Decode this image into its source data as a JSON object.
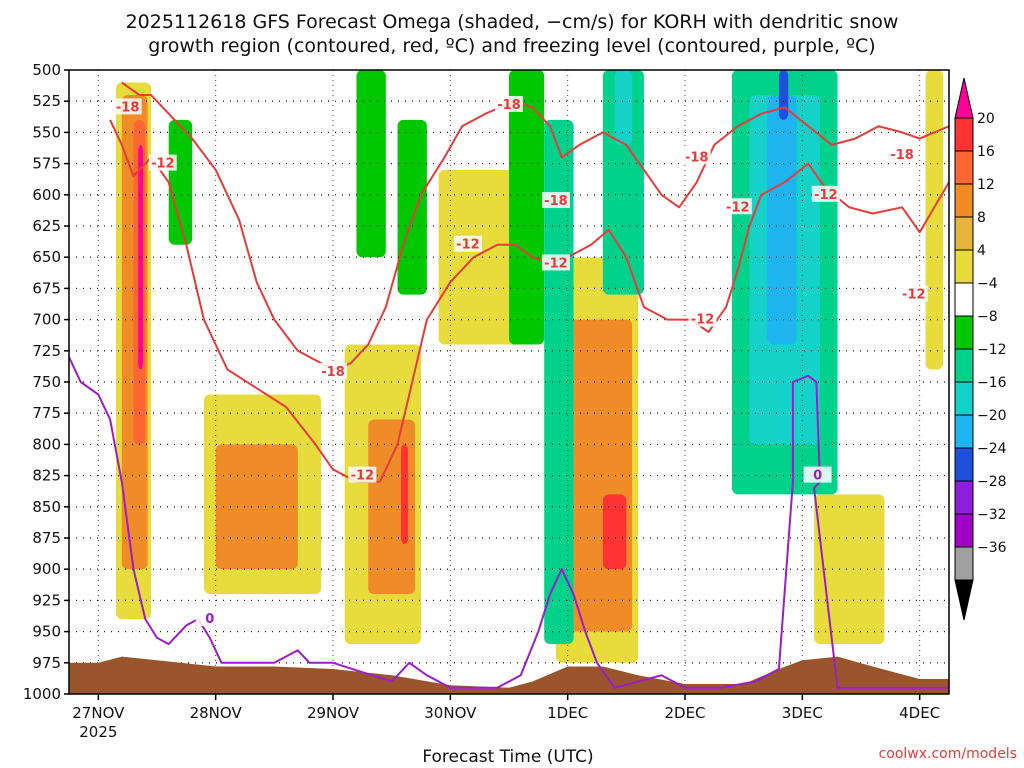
{
  "chart_data": {
    "type": "heatmap",
    "title_line1": "2025112618 GFS Forecast Omega (shaded, −cm/s) for KORH with dendritic snow",
    "title_line2": "growth region (contoured, red, ºC) and freezing level (contoured, purple, ºC)",
    "xlabel": "Forecast Time (UTC)",
    "x_ticks": [
      {
        "label": "27NOV",
        "sub": "2025",
        "day": 0
      },
      {
        "label": "28NOV",
        "sub": "",
        "day": 1
      },
      {
        "label": "29NOV",
        "sub": "",
        "day": 2
      },
      {
        "label": "30NOV",
        "sub": "",
        "day": 3
      },
      {
        "label": "1DEC",
        "sub": "",
        "day": 4
      },
      {
        "label": "2DEC",
        "sub": "",
        "day": 5
      },
      {
        "label": "3DEC",
        "sub": "",
        "day": 6
      },
      {
        "label": "4DEC",
        "sub": "",
        "day": 7
      }
    ],
    "xlim_days": [
      -0.25,
      7.25
    ],
    "y_ticks": [
      500,
      525,
      550,
      575,
      600,
      625,
      650,
      675,
      700,
      725,
      750,
      775,
      800,
      825,
      850,
      875,
      900,
      925,
      950,
      975,
      1000
    ],
    "ylim_hpa": [
      500,
      1000
    ],
    "colorbar": {
      "labels": [
        "20",
        "16",
        "12",
        "8",
        "4",
        "−4",
        "−8",
        "−12",
        "−16",
        "−20",
        "−24",
        "−28",
        "−32",
        "−36"
      ],
      "colors": [
        "#ff0099",
        "#ff3333",
        "#ff6633",
        "#f08c28",
        "#e8b440",
        "#e8dc3c",
        "#ffffff",
        "#00c800",
        "#00d28c",
        "#14d2c8",
        "#1eb4f0",
        "#1e50dc",
        "#8c1edc",
        "#a000c8",
        "#a0a0a0",
        "#000000"
      ]
    },
    "omega_cells": [
      {
        "t0": 0.15,
        "t1": 0.45,
        "p0": 510,
        "p1": 940,
        "v": 6
      },
      {
        "t0": 0.2,
        "t1": 0.42,
        "p0": 520,
        "p1": 900,
        "v": 10
      },
      {
        "t0": 0.3,
        "t1": 0.4,
        "p0": 540,
        "p1": 800,
        "v": 14
      },
      {
        "t0": 0.34,
        "t1": 0.38,
        "p0": 560,
        "p1": 740,
        "v": 20
      },
      {
        "t0": 0.9,
        "t1": 1.9,
        "p0": 760,
        "p1": 920,
        "v": 6
      },
      {
        "t0": 1.0,
        "t1": 1.7,
        "p0": 800,
        "p1": 900,
        "v": 10
      },
      {
        "t0": 2.1,
        "t1": 2.75,
        "p0": 720,
        "p1": 960,
        "v": 6
      },
      {
        "t0": 2.3,
        "t1": 2.7,
        "p0": 780,
        "p1": 920,
        "v": 10
      },
      {
        "t0": 2.58,
        "t1": 2.64,
        "p0": 800,
        "p1": 880,
        "v": 16
      },
      {
        "t0": 2.9,
        "t1": 3.6,
        "p0": 580,
        "p1": 720,
        "v": 5
      },
      {
        "t0": 3.9,
        "t1": 4.6,
        "p0": 650,
        "p1": 975,
        "v": 6
      },
      {
        "t0": 4.0,
        "t1": 4.55,
        "p0": 700,
        "p1": 950,
        "v": 10
      },
      {
        "t0": 4.3,
        "t1": 4.5,
        "p0": 840,
        "p1": 900,
        "v": 18
      },
      {
        "t0": 6.1,
        "t1": 6.7,
        "p0": 840,
        "p1": 960,
        "v": 5
      },
      {
        "t0": 7.05,
        "t1": 7.2,
        "p0": 500,
        "p1": 740,
        "v": 5
      },
      {
        "t0": 3.5,
        "t1": 3.8,
        "p0": 500,
        "p1": 720,
        "v": -6
      },
      {
        "t0": 3.8,
        "t1": 4.05,
        "p0": 540,
        "p1": 960,
        "v": -8
      },
      {
        "t0": 4.3,
        "t1": 4.65,
        "p0": 500,
        "p1": 680,
        "v": -10
      },
      {
        "t0": 4.4,
        "t1": 4.55,
        "p0": 500,
        "p1": 560,
        "v": -14
      },
      {
        "t0": 2.2,
        "t1": 2.45,
        "p0": 500,
        "p1": 650,
        "v": -6
      },
      {
        "t0": 2.55,
        "t1": 2.8,
        "p0": 540,
        "p1": 680,
        "v": -6
      },
      {
        "t0": 0.6,
        "t1": 0.8,
        "p0": 540,
        "p1": 640,
        "v": -6
      },
      {
        "t0": 5.4,
        "t1": 6.3,
        "p0": 500,
        "p1": 840,
        "v": -8
      },
      {
        "t0": 5.55,
        "t1": 6.15,
        "p0": 520,
        "p1": 800,
        "v": -12
      },
      {
        "t0": 5.7,
        "t1": 5.95,
        "p0": 520,
        "p1": 720,
        "v": -16
      },
      {
        "t0": 5.8,
        "t1": 5.88,
        "p0": 500,
        "p1": 540,
        "v": -22
      }
    ],
    "series": [
      {
        "name": "dgz_-12",
        "color": "#e63c3c",
        "points": [
          [
            0.1,
            540
          ],
          [
            0.2,
            560
          ],
          [
            0.3,
            585
          ],
          [
            0.45,
            570
          ],
          [
            0.6,
            590
          ],
          [
            0.75,
            640
          ],
          [
            0.9,
            700
          ],
          [
            1.1,
            740
          ],
          [
            1.35,
            755
          ],
          [
            1.6,
            770
          ],
          [
            1.85,
            800
          ],
          [
            2.0,
            820
          ],
          [
            2.2,
            830
          ],
          [
            2.4,
            830
          ],
          [
            2.55,
            800
          ],
          [
            2.65,
            760
          ],
          [
            2.8,
            700
          ],
          [
            3.0,
            670
          ],
          [
            3.2,
            650
          ],
          [
            3.4,
            640
          ],
          [
            3.55,
            640
          ],
          [
            3.7,
            650
          ],
          [
            3.85,
            655
          ],
          [
            4.0,
            650
          ],
          [
            4.2,
            640
          ],
          [
            4.35,
            628
          ],
          [
            4.5,
            650
          ],
          [
            4.65,
            690
          ],
          [
            4.85,
            700
          ],
          [
            5.05,
            700
          ],
          [
            5.2,
            710
          ],
          [
            5.35,
            690
          ],
          [
            5.45,
            660
          ],
          [
            5.55,
            625
          ],
          [
            5.65,
            600
          ],
          [
            5.85,
            590
          ],
          [
            6.05,
            575
          ],
          [
            6.2,
            595
          ],
          [
            6.4,
            610
          ],
          [
            6.6,
            615
          ],
          [
            6.85,
            610
          ],
          [
            7.0,
            630
          ],
          [
            7.25,
            590
          ]
        ]
      },
      {
        "name": "dgz_-18",
        "color": "#e63c3c",
        "points": [
          [
            0.2,
            510
          ],
          [
            0.35,
            520
          ],
          [
            0.45,
            520
          ],
          [
            0.6,
            535
          ],
          [
            0.8,
            555
          ],
          [
            1.0,
            580
          ],
          [
            1.2,
            620
          ],
          [
            1.35,
            670
          ],
          [
            1.5,
            700
          ],
          [
            1.7,
            725
          ],
          [
            2.0,
            740
          ],
          [
            2.15,
            735
          ],
          [
            2.3,
            720
          ],
          [
            2.45,
            690
          ],
          [
            2.6,
            640
          ],
          [
            2.75,
            600
          ],
          [
            2.95,
            570
          ],
          [
            3.1,
            545
          ],
          [
            3.3,
            535
          ],
          [
            3.55,
            525
          ],
          [
            3.7,
            530
          ],
          [
            3.85,
            545
          ],
          [
            3.95,
            570
          ],
          [
            4.1,
            560
          ],
          [
            4.3,
            550
          ],
          [
            4.5,
            560
          ],
          [
            4.65,
            580
          ],
          [
            4.8,
            600
          ],
          [
            4.95,
            610
          ],
          [
            5.1,
            590
          ],
          [
            5.25,
            560
          ],
          [
            5.45,
            545
          ],
          [
            5.65,
            535
          ],
          [
            5.85,
            530
          ],
          [
            6.05,
            545
          ],
          [
            6.25,
            560
          ],
          [
            6.45,
            555
          ],
          [
            6.65,
            545
          ],
          [
            6.85,
            550
          ],
          [
            7.0,
            555
          ],
          [
            7.25,
            545
          ]
        ]
      },
      {
        "name": "freezing_0",
        "color": "#9b1ec8",
        "points": [
          [
            -0.25,
            730
          ],
          [
            -0.15,
            750
          ],
          [
            0.0,
            760
          ],
          [
            0.1,
            780
          ],
          [
            0.2,
            830
          ],
          [
            0.3,
            900
          ],
          [
            0.4,
            940
          ],
          [
            0.5,
            955
          ],
          [
            0.6,
            960
          ],
          [
            0.75,
            945
          ],
          [
            0.85,
            940
          ],
          [
            0.95,
            955
          ],
          [
            1.05,
            975
          ],
          [
            1.5,
            975
          ],
          [
            1.7,
            965
          ],
          [
            1.8,
            975
          ],
          [
            2.0,
            975
          ],
          [
            2.5,
            990
          ],
          [
            2.65,
            975
          ],
          [
            2.8,
            985
          ],
          [
            3.0,
            995
          ],
          [
            3.4,
            995
          ],
          [
            3.6,
            985
          ],
          [
            3.75,
            950
          ],
          [
            3.85,
            920
          ],
          [
            3.95,
            900
          ],
          [
            4.05,
            920
          ],
          [
            4.15,
            950
          ],
          [
            4.25,
            975
          ],
          [
            4.4,
            995
          ],
          [
            4.6,
            990
          ],
          [
            4.8,
            985
          ],
          [
            5.0,
            995
          ],
          [
            5.3,
            995
          ],
          [
            5.6,
            990
          ],
          [
            5.8,
            980
          ],
          [
            5.92,
            830
          ],
          [
            5.92,
            750
          ],
          [
            6.05,
            745
          ],
          [
            6.12,
            750
          ],
          [
            6.15,
            830
          ],
          [
            6.1,
            835
          ],
          [
            6.3,
            995
          ],
          [
            6.8,
            995
          ],
          [
            7.25,
            995
          ]
        ]
      }
    ],
    "contour_labels": [
      {
        "text": "-18",
        "t": 0.25,
        "p": 530,
        "color": "#e63c3c"
      },
      {
        "text": "-12",
        "t": 0.55,
        "p": 575,
        "color": "#e63c3c"
      },
      {
        "text": "-18",
        "t": 2.0,
        "p": 742,
        "color": "#e63c3c"
      },
      {
        "text": "-12",
        "t": 2.25,
        "p": 825,
        "color": "#e63c3c"
      },
      {
        "text": "-12",
        "t": 3.15,
        "p": 640,
        "color": "#e63c3c"
      },
      {
        "text": "-18",
        "t": 3.5,
        "p": 528,
        "color": "#e63c3c"
      },
      {
        "text": "-12",
        "t": 3.9,
        "p": 655,
        "color": "#e63c3c"
      },
      {
        "text": "-18",
        "t": 3.9,
        "p": 605,
        "color": "#e63c3c"
      },
      {
        "text": "-18",
        "t": 5.1,
        "p": 570,
        "color": "#e63c3c"
      },
      {
        "text": "-12",
        "t": 5.15,
        "p": 700,
        "color": "#e63c3c"
      },
      {
        "text": "-12",
        "t": 5.45,
        "p": 610,
        "color": "#e63c3c"
      },
      {
        "text": "-12",
        "t": 6.2,
        "p": 600,
        "color": "#e63c3c"
      },
      {
        "text": "-18",
        "t": 6.85,
        "p": 568,
        "color": "#e63c3c"
      },
      {
        "text": "-12",
        "t": 6.95,
        "p": 680,
        "color": "#e63c3c"
      },
      {
        "text": "0",
        "t": 0.95,
        "p": 940,
        "color": "#9b1ec8"
      },
      {
        "text": "0",
        "t": 6.13,
        "p": 825,
        "color": "#9b1ec8"
      }
    ],
    "terrain_color": "#9b552d",
    "terrain_top": [
      [
        -0.25,
        975
      ],
      [
        0.0,
        975
      ],
      [
        0.2,
        970
      ],
      [
        0.5,
        973
      ],
      [
        1.0,
        978
      ],
      [
        1.5,
        978
      ],
      [
        2.0,
        980
      ],
      [
        2.5,
        985
      ],
      [
        3.0,
        993
      ],
      [
        3.5,
        995
      ],
      [
        3.7,
        990
      ],
      [
        4.0,
        978
      ],
      [
        4.3,
        978
      ],
      [
        4.6,
        985
      ],
      [
        5.0,
        992
      ],
      [
        5.5,
        992
      ],
      [
        5.8,
        980
      ],
      [
        6.0,
        973
      ],
      [
        6.3,
        970
      ],
      [
        6.6,
        978
      ],
      [
        7.0,
        988
      ],
      [
        7.25,
        988
      ]
    ]
  },
  "credit": "coolwx.com/models"
}
